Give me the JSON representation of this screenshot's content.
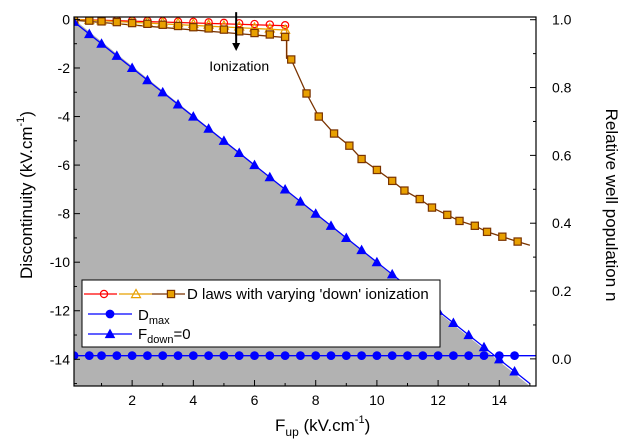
{
  "chart_data": {
    "type": "line",
    "x_axis": {
      "label_main": "F",
      "label_sub": "up",
      "label_unit": " (kV.cm",
      "label_sup": "-1",
      "label_close": ")",
      "range": [
        0.1,
        15.2
      ],
      "ticks": [
        2,
        4,
        6,
        8,
        10,
        12,
        14
      ]
    },
    "y_axis_left": {
      "label_main": "Discontinuity (kV.cm",
      "label_sup": "-1",
      "label_close": ")",
      "range": [
        -15.1,
        0.1
      ],
      "ticks": [
        0,
        -2,
        -4,
        -6,
        -8,
        -10,
        -12,
        -14
      ]
    },
    "y_axis_right": {
      "label": "Relative well population n",
      "range": [
        -0.08,
        1.008
      ],
      "ticks": [
        0.0,
        0.2,
        0.4,
        0.6,
        0.8,
        1.0
      ]
    },
    "annotation": {
      "text": "Ionization",
      "arrow_x": 5.4,
      "arrow_y_from": 0.3,
      "arrow_y_to": -1.3
    },
    "shaded_region": {
      "description_hidden": true,
      "color": "#b2b2b2",
      "upper_x": [
        0.1,
        15.0
      ],
      "upper_y": [
        0.0,
        -15.1
      ]
    },
    "series": [
      {
        "key": "circle_open",
        "color": "#ff0000",
        "marker": "circle-open",
        "x": [
          0.1,
          0.6,
          1.0,
          1.5,
          2.0,
          2.5,
          3.0,
          3.5,
          4.0,
          4.5,
          5.0,
          5.5,
          6.0,
          6.5,
          7.0
        ],
        "y": [
          0.0,
          -0.01,
          -0.02,
          -0.03,
          -0.05,
          -0.06,
          -0.07,
          -0.09,
          -0.1,
          -0.12,
          -0.14,
          -0.16,
          -0.19,
          -0.21,
          -0.24
        ],
        "line_x": [
          0.1,
          7.05,
          7.05
        ],
        "line_y": [
          0.0,
          -0.26,
          -1.6
        ]
      },
      {
        "key": "triangle_open",
        "color": "#e8a000",
        "marker": "triangle-open",
        "x": [
          0.1,
          0.6,
          1.0,
          1.5,
          2.0,
          2.5,
          3.0,
          3.5,
          4.0,
          4.5,
          5.0,
          5.5,
          6.0,
          6.5,
          7.0
        ],
        "y": [
          0.0,
          -0.02,
          -0.03,
          -0.05,
          -0.08,
          -0.1,
          -0.12,
          -0.15,
          -0.18,
          -0.21,
          -0.25,
          -0.29,
          -0.33,
          -0.37,
          -0.42
        ],
        "line_x": [
          0.1,
          7.05,
          7.05
        ],
        "line_y": [
          0.0,
          -0.44,
          -1.6
        ]
      },
      {
        "key": "square_open",
        "color": "#7a3300",
        "marker": "square-open",
        "x": [
          0.1,
          0.6,
          1.0,
          1.5,
          2.0,
          2.5,
          3.0,
          3.5,
          4.0,
          4.5,
          5.0,
          5.5,
          6.0,
          6.5,
          7.0,
          7.2,
          7.7,
          8.1,
          8.6,
          9.1,
          9.5,
          10.0,
          10.5,
          10.9,
          11.4,
          11.8,
          12.3,
          12.7,
          13.2,
          13.6,
          14.1,
          14.6
        ],
        "y": [
          -0.03,
          -0.05,
          -0.08,
          -0.11,
          -0.15,
          -0.18,
          -0.22,
          -0.27,
          -0.32,
          -0.37,
          -0.42,
          -0.49,
          -0.56,
          -0.62,
          -0.72,
          -1.65,
          -3.05,
          -4.0,
          -4.7,
          -5.2,
          -5.75,
          -6.2,
          -6.65,
          -7.05,
          -7.4,
          -7.75,
          -8.05,
          -8.3,
          -8.5,
          -8.75,
          -8.95,
          -9.15
        ],
        "line_x": [
          0.1,
          7.05,
          7.05,
          7.2,
          7.7,
          8.1,
          8.6,
          9.1,
          9.5,
          10.0,
          10.5,
          10.9,
          11.4,
          11.8,
          12.3,
          12.7,
          13.2,
          13.6,
          14.1,
          14.6,
          15.0
        ],
        "line_y": [
          -0.03,
          -0.75,
          -1.6,
          -1.65,
          -3.05,
          -4.0,
          -4.7,
          -5.2,
          -5.75,
          -6.2,
          -6.65,
          -7.05,
          -7.4,
          -7.75,
          -8.05,
          -8.3,
          -8.5,
          -8.75,
          -8.95,
          -9.15,
          -9.3
        ]
      },
      {
        "key": "dmax",
        "color": "#0000ff",
        "marker": "circle-filled",
        "x": [
          0.1,
          0.6,
          1.0,
          1.5,
          2.0,
          2.5,
          3.0,
          3.5,
          4.0,
          4.5,
          5.0,
          5.5,
          6.0,
          6.5,
          7.0,
          7.5,
          8.0,
          8.5,
          9.0,
          9.5,
          10.0,
          10.5,
          11.0,
          11.5,
          12.0,
          12.5,
          13.0,
          13.5,
          14.0,
          14.5
        ],
        "y": [
          -13.85,
          -13.85,
          -13.85,
          -13.85,
          -13.85,
          -13.85,
          -13.85,
          -13.85,
          -13.85,
          -13.85,
          -13.85,
          -13.85,
          -13.85,
          -13.85,
          -13.85,
          -13.85,
          -13.85,
          -13.85,
          -13.85,
          -13.85,
          -13.85,
          -13.85,
          -13.85,
          -13.85,
          -13.85,
          -13.85,
          -13.85,
          -13.85,
          -13.85,
          -13.85
        ],
        "line_x": [
          0.1,
          15.2
        ],
        "line_y": [
          -13.85,
          -13.85
        ]
      },
      {
        "key": "fdown0",
        "color": "#0000ff",
        "marker": "triangle-filled",
        "x": [
          0.1,
          0.6,
          1.0,
          1.5,
          2.0,
          2.5,
          3.0,
          3.5,
          4.0,
          4.5,
          5.0,
          5.5,
          6.0,
          6.5,
          7.0,
          7.5,
          8.0,
          8.5,
          9.0,
          9.5,
          10.0,
          10.5,
          11.0,
          11.5,
          12.0,
          12.5,
          13.0,
          13.5,
          14.0,
          14.5
        ],
        "y": [
          -0.1,
          -0.6,
          -1.0,
          -1.5,
          -2.0,
          -2.5,
          -3.0,
          -3.5,
          -4.0,
          -4.5,
          -5.0,
          -5.5,
          -6.0,
          -6.5,
          -7.0,
          -7.5,
          -8.0,
          -8.5,
          -9.0,
          -9.5,
          -10.0,
          -10.5,
          -11.0,
          -11.5,
          -12.0,
          -12.5,
          -13.0,
          -13.5,
          -14.0,
          -14.5
        ],
        "line_x": [
          0.1,
          15.0
        ],
        "line_y": [
          -0.1,
          -15.0
        ]
      }
    ],
    "legend": {
      "placement": "bottom-left",
      "entries": [
        {
          "main": "D laws with varying 'down' ionization"
        },
        {
          "main": "D",
          "sub": "max"
        },
        {
          "main": "F",
          "sub": "down",
          "tail": "=0"
        }
      ]
    }
  }
}
